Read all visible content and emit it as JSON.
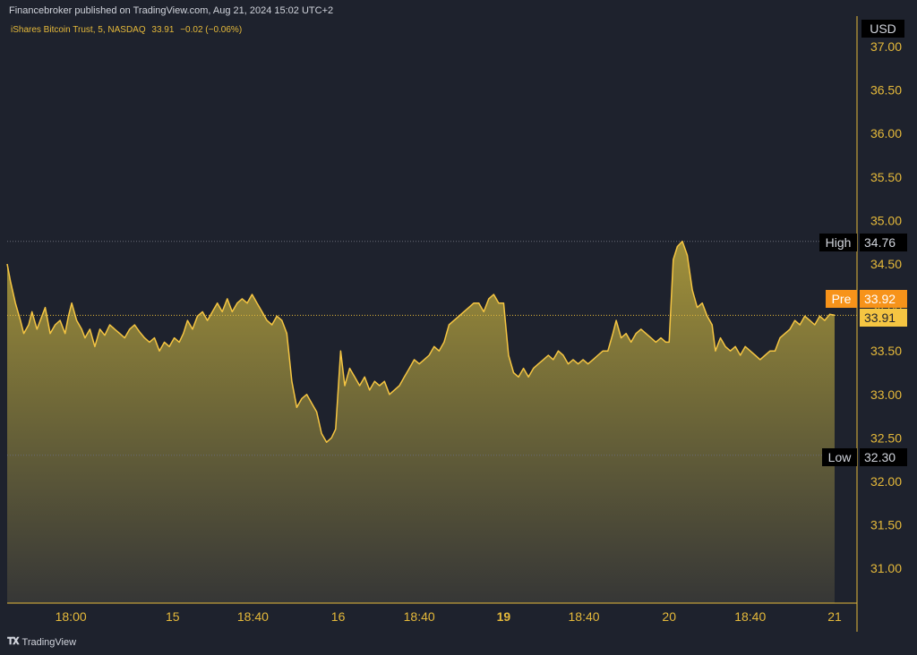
{
  "header": {
    "publisher_line": "Financebroker published on TradingView.com, Aug 21, 2024 15:02 UTC+2",
    "symbol_name": "iShares Bitcoin Trust, 5, NASDAQ",
    "last_price": "33.91",
    "change": "−0.02 (−0.06%)"
  },
  "axis": {
    "currency": "USD"
  },
  "markers": {
    "high_label": "High",
    "high_value": "34.76",
    "pre_label": "Pre",
    "pre_value": "33.92",
    "last_value": "33.91",
    "low_label": "Low",
    "low_value": "32.30"
  },
  "footer": {
    "logo_text": "TradingView"
  },
  "colors": {
    "background": "#1e222d",
    "line": "#f5c542",
    "axis_text": "#e5b93a",
    "pre_badge": "#f7931a",
    "last_badge": "#f5c542"
  },
  "chart_data": {
    "type": "area",
    "ylim": [
      30.6,
      37.35
    ],
    "yticks": [
      31.0,
      31.5,
      32.0,
      32.5,
      33.0,
      33.5,
      34.0,
      34.5,
      35.0,
      35.5,
      36.0,
      36.5,
      37.0
    ],
    "ytick_labels": [
      "31.00",
      "31.50",
      "32.00",
      "32.50",
      "33.00",
      "33.50",
      "34.00",
      "34.50",
      "35.00",
      "35.50",
      "36.00",
      "36.50",
      "37.00"
    ],
    "x_ticks": [
      {
        "label": "18:00",
        "t": 0.077,
        "bold": false
      },
      {
        "label": "15",
        "t": 0.2,
        "bold": false
      },
      {
        "label": "18:40",
        "t": 0.297,
        "bold": false
      },
      {
        "label": "16",
        "t": 0.4,
        "bold": false
      },
      {
        "label": "18:40",
        "t": 0.498,
        "bold": false
      },
      {
        "label": "19",
        "t": 0.6,
        "bold": true
      },
      {
        "label": "18:40",
        "t": 0.697,
        "bold": false
      },
      {
        "label": "20",
        "t": 0.8,
        "bold": false
      },
      {
        "label": "18:40",
        "t": 0.898,
        "bold": false
      },
      {
        "label": "21",
        "t": 1.0,
        "bold": false
      }
    ],
    "high": 34.76,
    "low": 32.3,
    "last": 33.91,
    "points": [
      [
        0.0,
        34.5
      ],
      [
        0.004,
        34.3
      ],
      [
        0.01,
        34.05
      ],
      [
        0.016,
        33.85
      ],
      [
        0.02,
        33.7
      ],
      [
        0.026,
        33.8
      ],
      [
        0.03,
        33.95
      ],
      [
        0.036,
        33.75
      ],
      [
        0.042,
        33.9
      ],
      [
        0.046,
        34.0
      ],
      [
        0.052,
        33.7
      ],
      [
        0.058,
        33.8
      ],
      [
        0.064,
        33.85
      ],
      [
        0.07,
        33.7
      ],
      [
        0.074,
        33.9
      ],
      [
        0.078,
        34.05
      ],
      [
        0.084,
        33.85
      ],
      [
        0.09,
        33.75
      ],
      [
        0.094,
        33.65
      ],
      [
        0.1,
        33.75
      ],
      [
        0.106,
        33.55
      ],
      [
        0.112,
        33.75
      ],
      [
        0.118,
        33.68
      ],
      [
        0.124,
        33.8
      ],
      [
        0.13,
        33.75
      ],
      [
        0.136,
        33.7
      ],
      [
        0.142,
        33.65
      ],
      [
        0.148,
        33.75
      ],
      [
        0.154,
        33.8
      ],
      [
        0.16,
        33.72
      ],
      [
        0.166,
        33.65
      ],
      [
        0.172,
        33.6
      ],
      [
        0.178,
        33.65
      ],
      [
        0.184,
        33.5
      ],
      [
        0.19,
        33.6
      ],
      [
        0.196,
        33.55
      ],
      [
        0.202,
        33.65
      ],
      [
        0.208,
        33.6
      ],
      [
        0.213,
        33.7
      ],
      [
        0.218,
        33.85
      ],
      [
        0.224,
        33.75
      ],
      [
        0.23,
        33.9
      ],
      [
        0.236,
        33.95
      ],
      [
        0.242,
        33.85
      ],
      [
        0.248,
        33.95
      ],
      [
        0.254,
        34.05
      ],
      [
        0.26,
        33.95
      ],
      [
        0.266,
        34.1
      ],
      [
        0.272,
        33.95
      ],
      [
        0.278,
        34.05
      ],
      [
        0.284,
        34.1
      ],
      [
        0.29,
        34.05
      ],
      [
        0.296,
        34.15
      ],
      [
        0.302,
        34.05
      ],
      [
        0.308,
        33.95
      ],
      [
        0.314,
        33.85
      ],
      [
        0.32,
        33.8
      ],
      [
        0.326,
        33.9
      ],
      [
        0.332,
        33.85
      ],
      [
        0.338,
        33.7
      ],
      [
        0.344,
        33.15
      ],
      [
        0.35,
        32.85
      ],
      [
        0.356,
        32.95
      ],
      [
        0.362,
        33.0
      ],
      [
        0.368,
        32.9
      ],
      [
        0.374,
        32.8
      ],
      [
        0.38,
        32.55
      ],
      [
        0.386,
        32.45
      ],
      [
        0.392,
        32.5
      ],
      [
        0.397,
        32.6
      ],
      [
        0.403,
        33.5
      ],
      [
        0.408,
        33.1
      ],
      [
        0.414,
        33.3
      ],
      [
        0.42,
        33.2
      ],
      [
        0.426,
        33.1
      ],
      [
        0.432,
        33.2
      ],
      [
        0.438,
        33.05
      ],
      [
        0.444,
        33.15
      ],
      [
        0.45,
        33.1
      ],
      [
        0.456,
        33.15
      ],
      [
        0.462,
        33.0
      ],
      [
        0.468,
        33.05
      ],
      [
        0.474,
        33.1
      ],
      [
        0.48,
        33.2
      ],
      [
        0.486,
        33.3
      ],
      [
        0.492,
        33.4
      ],
      [
        0.498,
        33.35
      ],
      [
        0.504,
        33.4
      ],
      [
        0.51,
        33.45
      ],
      [
        0.516,
        33.55
      ],
      [
        0.522,
        33.5
      ],
      [
        0.528,
        33.6
      ],
      [
        0.534,
        33.8
      ],
      [
        0.54,
        33.85
      ],
      [
        0.546,
        33.9
      ],
      [
        0.552,
        33.95
      ],
      [
        0.558,
        34.0
      ],
      [
        0.564,
        34.05
      ],
      [
        0.57,
        34.05
      ],
      [
        0.576,
        33.95
      ],
      [
        0.582,
        34.1
      ],
      [
        0.588,
        34.15
      ],
      [
        0.594,
        34.05
      ],
      [
        0.6,
        34.05
      ],
      [
        0.606,
        33.45
      ],
      [
        0.612,
        33.25
      ],
      [
        0.618,
        33.2
      ],
      [
        0.624,
        33.3
      ],
      [
        0.63,
        33.2
      ],
      [
        0.636,
        33.3
      ],
      [
        0.642,
        33.35
      ],
      [
        0.648,
        33.4
      ],
      [
        0.654,
        33.45
      ],
      [
        0.66,
        33.4
      ],
      [
        0.666,
        33.5
      ],
      [
        0.672,
        33.45
      ],
      [
        0.678,
        33.35
      ],
      [
        0.684,
        33.4
      ],
      [
        0.69,
        33.35
      ],
      [
        0.696,
        33.4
      ],
      [
        0.702,
        33.35
      ],
      [
        0.708,
        33.4
      ],
      [
        0.714,
        33.45
      ],
      [
        0.72,
        33.5
      ],
      [
        0.726,
        33.5
      ],
      [
        0.732,
        33.7
      ],
      [
        0.736,
        33.85
      ],
      [
        0.742,
        33.65
      ],
      [
        0.748,
        33.7
      ],
      [
        0.754,
        33.6
      ],
      [
        0.76,
        33.7
      ],
      [
        0.766,
        33.75
      ],
      [
        0.772,
        33.7
      ],
      [
        0.778,
        33.65
      ],
      [
        0.784,
        33.6
      ],
      [
        0.79,
        33.65
      ],
      [
        0.796,
        33.6
      ],
      [
        0.8,
        33.6
      ],
      [
        0.805,
        34.55
      ],
      [
        0.81,
        34.7
      ],
      [
        0.816,
        34.76
      ],
      [
        0.822,
        34.6
      ],
      [
        0.828,
        34.2
      ],
      [
        0.834,
        34.0
      ],
      [
        0.84,
        34.05
      ],
      [
        0.846,
        33.9
      ],
      [
        0.852,
        33.8
      ],
      [
        0.856,
        33.5
      ],
      [
        0.862,
        33.65
      ],
      [
        0.868,
        33.55
      ],
      [
        0.874,
        33.5
      ],
      [
        0.88,
        33.55
      ],
      [
        0.886,
        33.45
      ],
      [
        0.892,
        33.55
      ],
      [
        0.898,
        33.5
      ],
      [
        0.904,
        33.45
      ],
      [
        0.91,
        33.4
      ],
      [
        0.916,
        33.45
      ],
      [
        0.922,
        33.5
      ],
      [
        0.928,
        33.5
      ],
      [
        0.934,
        33.65
      ],
      [
        0.94,
        33.7
      ],
      [
        0.946,
        33.75
      ],
      [
        0.952,
        33.85
      ],
      [
        0.958,
        33.8
      ],
      [
        0.964,
        33.9
      ],
      [
        0.97,
        33.85
      ],
      [
        0.976,
        33.8
      ],
      [
        0.982,
        33.9
      ],
      [
        0.988,
        33.85
      ],
      [
        0.994,
        33.92
      ],
      [
        1.0,
        33.91
      ]
    ]
  }
}
